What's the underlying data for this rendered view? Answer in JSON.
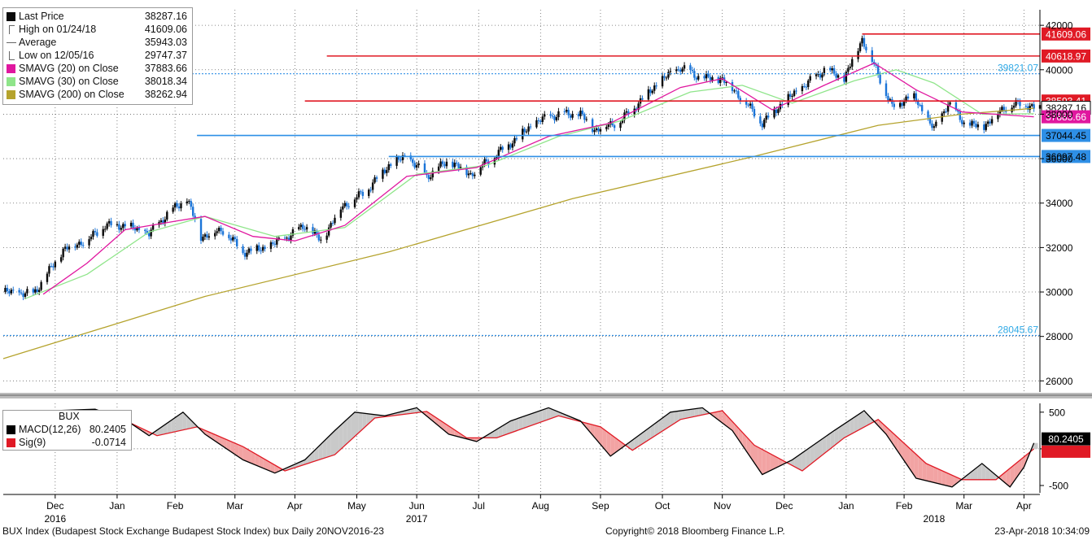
{
  "colors": {
    "bullish": "#0a0a0a",
    "bearish": "#1a74d8",
    "sma20": "#e0179f",
    "sma30": "#8fe58a",
    "sma200": "#b5a32d",
    "resistance": "#e01a25",
    "support": "#2e8fe6",
    "macd": "#000000",
    "signal": "#e01a25",
    "grid": "#666666"
  },
  "legend": {
    "items": [
      {
        "icon": "black-square-icon",
        "label": "Last Price",
        "value": "38287.16"
      },
      {
        "icon": "high-marker-icon",
        "label": "High on 01/24/18",
        "value": "41609.06"
      },
      {
        "icon": "average-marker-icon",
        "label": "Average",
        "value": "35943.03"
      },
      {
        "icon": "low-marker-icon",
        "label": "Low on 12/05/16",
        "value": "29747.37"
      },
      {
        "icon": "magenta-square-icon",
        "label": "SMAVG (20) on Close",
        "value": "37883.66"
      },
      {
        "icon": "green-square-icon",
        "label": "SMAVG (30) on Close",
        "value": "38018.34"
      },
      {
        "icon": "olive-square-icon",
        "label": "SMAVG (200) on Close",
        "value": "38262.94"
      }
    ]
  },
  "macd_legend": {
    "title": "BUX",
    "macd_label": "MACD(12,26)",
    "macd_value": "80.2405",
    "sig_label": "Sig(9)",
    "sig_value": "-0.0714"
  },
  "chart_data": [
    {
      "type": "candlestick",
      "ylim": [
        25500,
        42700
      ],
      "y_ticks": [
        "26000",
        "28000",
        "30000",
        "32000",
        "34000",
        "36000",
        "38000",
        "40000",
        "42000"
      ],
      "grid": true,
      "close_path": [
        [
          "2016-11-20",
          30000
        ],
        [
          "2016-12-05",
          29900
        ],
        [
          "2016-12-12",
          30800
        ],
        [
          "2016-12-20",
          31900
        ],
        [
          "2017-01-02",
          32400
        ],
        [
          "2017-01-10",
          33000
        ],
        [
          "2017-01-20",
          33000
        ],
        [
          "2017-02-01",
          32600
        ],
        [
          "2017-02-10",
          33500
        ],
        [
          "2017-02-20",
          34200
        ],
        [
          "2017-02-27",
          32500
        ],
        [
          "2017-03-10",
          32800
        ],
        [
          "2017-03-20",
          31800
        ],
        [
          "2017-04-01",
          32000
        ],
        [
          "2017-04-10",
          32400
        ],
        [
          "2017-04-20",
          33000
        ],
        [
          "2017-04-28",
          32300
        ],
        [
          "2017-05-08",
          33800
        ],
        [
          "2017-05-20",
          34500
        ],
        [
          "2017-06-01",
          35700
        ],
        [
          "2017-06-10",
          36100
        ],
        [
          "2017-06-20",
          35200
        ],
        [
          "2017-07-01",
          35900
        ],
        [
          "2017-07-12",
          35300
        ],
        [
          "2017-07-25",
          36200
        ],
        [
          "2017-08-05",
          37000
        ],
        [
          "2017-08-15",
          37700
        ],
        [
          "2017-08-25",
          38000
        ],
        [
          "2017-09-05",
          38000
        ],
        [
          "2017-09-12",
          37300
        ],
        [
          "2017-09-25",
          37700
        ],
        [
          "2017-10-05",
          38600
        ],
        [
          "2017-10-15",
          39500
        ],
        [
          "2017-10-25",
          40100
        ],
        [
          "2017-11-05",
          39600
        ],
        [
          "2017-11-15",
          39600
        ],
        [
          "2017-11-25",
          38700
        ],
        [
          "2017-12-05",
          37600
        ],
        [
          "2017-12-15",
          38500
        ],
        [
          "2017-12-25",
          39200
        ],
        [
          "2018-01-05",
          40000
        ],
        [
          "2018-01-15",
          39600
        ],
        [
          "2018-01-24",
          41400
        ],
        [
          "2018-02-01",
          39800
        ],
        [
          "2018-02-08",
          38300
        ],
        [
          "2018-02-18",
          38900
        ],
        [
          "2018-03-01",
          37300
        ],
        [
          "2018-03-08",
          38500
        ],
        [
          "2018-03-16",
          37600
        ],
        [
          "2018-03-25",
          37400
        ],
        [
          "2018-04-05",
          38300
        ],
        [
          "2018-04-15",
          38500
        ],
        [
          "2018-04-20",
          38287.16
        ]
      ],
      "sma20_points": [
        [
          "2016-12-10",
          29900
        ],
        [
          "2017-01-01",
          31300
        ],
        [
          "2017-01-20",
          32800
        ],
        [
          "2017-02-15",
          33200
        ],
        [
          "2017-03-01",
          33400
        ],
        [
          "2017-03-25",
          32500
        ],
        [
          "2017-04-15",
          32300
        ],
        [
          "2017-05-10",
          33000
        ],
        [
          "2017-06-10",
          35200
        ],
        [
          "2017-07-15",
          35600
        ],
        [
          "2017-08-20",
          37000
        ],
        [
          "2017-09-20",
          37600
        ],
        [
          "2017-10-25",
          39200
        ],
        [
          "2017-11-15",
          39600
        ],
        [
          "2017-12-10",
          38200
        ],
        [
          "2018-01-05",
          39300
        ],
        [
          "2018-01-30",
          40300
        ],
        [
          "2018-02-20",
          39100
        ],
        [
          "2018-03-15",
          38100
        ],
        [
          "2018-04-20",
          37883.66
        ]
      ],
      "sma30_points": [
        [
          "2016-12-01",
          29700
        ],
        [
          "2017-01-01",
          30800
        ],
        [
          "2017-02-01",
          32700
        ],
        [
          "2017-03-01",
          33400
        ],
        [
          "2017-04-05",
          32500
        ],
        [
          "2017-05-10",
          32900
        ],
        [
          "2017-06-15",
          35300
        ],
        [
          "2017-07-20",
          35700
        ],
        [
          "2017-08-25",
          37000
        ],
        [
          "2017-09-25",
          37700
        ],
        [
          "2017-10-30",
          39000
        ],
        [
          "2017-11-25",
          39300
        ],
        [
          "2017-12-20",
          38500
        ],
        [
          "2018-01-20",
          39500
        ],
        [
          "2018-02-10",
          40000
        ],
        [
          "2018-03-01",
          39400
        ],
        [
          "2018-03-25",
          38000
        ],
        [
          "2018-04-20",
          38018.34
        ]
      ],
      "sma200_points": [
        [
          "2016-11-20",
          27000
        ],
        [
          "2017-03-01",
          29800
        ],
        [
          "2017-06-01",
          31800
        ],
        [
          "2017-09-01",
          34200
        ],
        [
          "2017-12-01",
          36100
        ],
        [
          "2018-02-01",
          37500
        ],
        [
          "2018-03-15",
          38000
        ],
        [
          "2018-04-20",
          38262.94
        ]
      ],
      "horizontal_lines": [
        {
          "value": 41609.06,
          "label": "41609.06",
          "style": "resistance",
          "from": "2018-01-24"
        },
        {
          "value": 40618.97,
          "label": "40618.97",
          "style": "resistance",
          "from": "2017-05-01"
        },
        {
          "value": 38593.41,
          "label": "38593.41",
          "style": "resistance",
          "from": "2017-04-20"
        },
        {
          "value": 37044.45,
          "label": "37044.45",
          "style": "support",
          "from": "2017-02-25"
        },
        {
          "value": 36097.48,
          "label": "36097.48",
          "style": "support",
          "from": "2017-06-01"
        }
      ],
      "dotted_lines": [
        {
          "value": 39821.07,
          "label": "39821.07"
        },
        {
          "value": 28045.67,
          "label": "28045.67"
        }
      ],
      "right_labels": [
        {
          "text": "38287.16",
          "value": 38287.16,
          "bg": "#ffffff",
          "fg": "#000000"
        },
        {
          "text": "37883.66",
          "value": 37883.66,
          "bg": "#e0179f",
          "fg": "#ffffff"
        }
      ]
    },
    {
      "type": "line",
      "title": "BUX",
      "ylim": [
        -600,
        620
      ],
      "y_ticks": [
        "500",
        "0",
        "-500"
      ],
      "macd_points": [
        [
          "2016-11-20",
          300
        ],
        [
          "2016-12-15",
          520
        ],
        [
          "2017-01-05",
          540
        ],
        [
          "2017-01-20",
          400
        ],
        [
          "2017-02-01",
          180
        ],
        [
          "2017-02-18",
          500
        ],
        [
          "2017-03-01",
          200
        ],
        [
          "2017-03-20",
          -150
        ],
        [
          "2017-04-05",
          -330
        ],
        [
          "2017-04-20",
          -150
        ],
        [
          "2017-05-05",
          250
        ],
        [
          "2017-05-15",
          500
        ],
        [
          "2017-05-30",
          450
        ],
        [
          "2017-06-15",
          560
        ],
        [
          "2017-07-01",
          200
        ],
        [
          "2017-07-15",
          100
        ],
        [
          "2017-08-01",
          380
        ],
        [
          "2017-08-20",
          560
        ],
        [
          "2017-09-05",
          380
        ],
        [
          "2017-09-20",
          -100
        ],
        [
          "2017-10-05",
          200
        ],
        [
          "2017-10-20",
          500
        ],
        [
          "2017-11-05",
          560
        ],
        [
          "2017-11-20",
          250
        ],
        [
          "2017-12-05",
          -350
        ],
        [
          "2017-12-20",
          -150
        ],
        [
          "2018-01-10",
          250
        ],
        [
          "2018-01-25",
          520
        ],
        [
          "2018-02-05",
          200
        ],
        [
          "2018-02-20",
          -400
        ],
        [
          "2018-03-10",
          -520
        ],
        [
          "2018-03-25",
          -200
        ],
        [
          "2018-04-08",
          -520
        ],
        [
          "2018-04-15",
          -250
        ],
        [
          "2018-04-20",
          80.24
        ]
      ],
      "signal_points": [
        [
          "2016-11-20",
          200
        ],
        [
          "2016-12-20",
          450
        ],
        [
          "2017-01-15",
          450
        ],
        [
          "2017-02-05",
          180
        ],
        [
          "2017-02-25",
          300
        ],
        [
          "2017-03-20",
          30
        ],
        [
          "2017-04-10",
          -300
        ],
        [
          "2017-05-05",
          -80
        ],
        [
          "2017-05-25",
          420
        ],
        [
          "2017-06-20",
          510
        ],
        [
          "2017-07-10",
          150
        ],
        [
          "2017-07-25",
          150
        ],
        [
          "2017-08-25",
          450
        ],
        [
          "2017-09-15",
          300
        ],
        [
          "2017-10-01",
          -20
        ],
        [
          "2017-10-25",
          400
        ],
        [
          "2017-11-15",
          520
        ],
        [
          "2017-12-01",
          50
        ],
        [
          "2017-12-25",
          -300
        ],
        [
          "2018-01-15",
          150
        ],
        [
          "2018-02-01",
          400
        ],
        [
          "2018-02-25",
          -200
        ],
        [
          "2018-03-15",
          -420
        ],
        [
          "2018-04-01",
          -420
        ],
        [
          "2018-04-20",
          -0.07
        ]
      ]
    }
  ],
  "x_axis": {
    "months": [
      {
        "label": "Dec",
        "date": "2016-12-16"
      },
      {
        "label": "Jan",
        "date": "2017-01-16"
      },
      {
        "label": "Feb",
        "date": "2017-02-14"
      },
      {
        "label": "Mar",
        "date": "2017-03-16"
      },
      {
        "label": "Apr",
        "date": "2017-04-15"
      },
      {
        "label": "May",
        "date": "2017-05-16"
      },
      {
        "label": "Jun",
        "date": "2017-06-15"
      },
      {
        "label": "Jul",
        "date": "2017-07-16"
      },
      {
        "label": "Aug",
        "date": "2017-08-16"
      },
      {
        "label": "Sep",
        "date": "2017-09-15"
      },
      {
        "label": "Oct",
        "date": "2017-10-16"
      },
      {
        "label": "Nov",
        "date": "2017-11-15"
      },
      {
        "label": "Dec",
        "date": "2017-12-16"
      },
      {
        "label": "Jan",
        "date": "2018-01-16"
      },
      {
        "label": "Feb",
        "date": "2018-02-14"
      },
      {
        "label": "Mar",
        "date": "2018-03-16"
      },
      {
        "label": "Apr",
        "date": "2018-04-15"
      }
    ],
    "years": [
      {
        "label": "2016",
        "date": "2016-12-16"
      },
      {
        "label": "2017",
        "date": "2017-06-15"
      },
      {
        "label": "2018",
        "date": "2018-03-01"
      }
    ],
    "start": "2016-11-20",
    "end": "2018-04-23"
  },
  "footer": {
    "left": "BUX Index (Budapest Stock Exchange Budapest Stock Index) bux  Daily 20NOV2016-23",
    "center": "Copyright© 2018 Bloomberg Finance L.P.",
    "right": "23-Apr-2018 10:34:09"
  }
}
